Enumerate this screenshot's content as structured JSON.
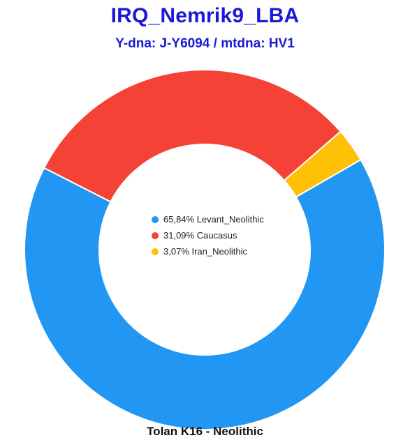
{
  "header": {
    "title": "IRQ_Nemrik9_LBA",
    "subtitle": "Y-dna: J-Y6094 / mtdna: HV1"
  },
  "footer": {
    "caption": "Tolan K16 - Neolithic"
  },
  "chart_data": {
    "type": "pie",
    "variant": "donut",
    "title": "IRQ_Nemrik9_LBA",
    "subtitle": "Y-dna: J-Y6094 / mtdna: HV1",
    "caption": "Tolan K16 - Neolithic",
    "legend_placement": "center",
    "slices": [
      {
        "label": "Levant_Neolithic",
        "value": 65.84,
        "display": "65,84% Levant_Neolithic",
        "color": "#2196f3"
      },
      {
        "label": "Caucasus",
        "value": 31.09,
        "display": "31,09% Caucasus",
        "color": "#f44336"
      },
      {
        "label": "Iran_Neolithic",
        "value": 3.07,
        "display": "3,07% Iran_Neolithic",
        "color": "#ffc107"
      }
    ]
  }
}
